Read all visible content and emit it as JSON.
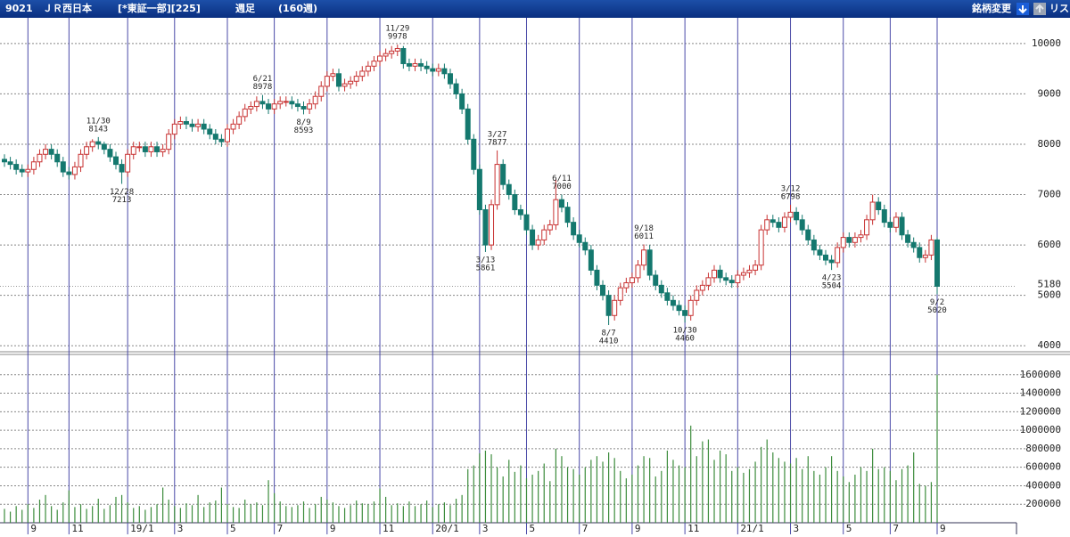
{
  "header": {
    "code": "9021",
    "name": "ＪＲ西日本",
    "market": "[*東証一部][225]",
    "period": "週足",
    "span": "(160週)",
    "change_button": "銘柄変更",
    "list_button": "リス"
  },
  "chart_data": {
    "type": "candlestick",
    "categories": [
      null,
      null,
      null,
      null,
      "9",
      null,
      null,
      null,
      null,
      null,
      null,
      "11",
      null,
      null,
      null,
      null,
      null,
      null,
      null,
      null,
      null,
      "19/1",
      null,
      null,
      null,
      null,
      null,
      null,
      null,
      "3",
      null,
      null,
      null,
      null,
      null,
      null,
      null,
      null,
      "5",
      null,
      null,
      null,
      null,
      null,
      null,
      null,
      "7",
      null,
      null,
      null,
      null,
      null,
      null,
      null,
      null,
      "9",
      null,
      null,
      null,
      null,
      null,
      null,
      null,
      null,
      "11",
      null,
      null,
      null,
      null,
      null,
      null,
      null,
      null,
      "20/1",
      null,
      null,
      null,
      null,
      null,
      null,
      null,
      "3",
      null,
      null,
      null,
      null,
      null,
      null,
      null,
      "5",
      null,
      null,
      null,
      null,
      null,
      null,
      null,
      null,
      "7",
      null,
      null,
      null,
      null,
      null,
      null,
      null,
      null,
      "9",
      null,
      null,
      null,
      null,
      null,
      null,
      null,
      null,
      "11",
      null,
      null,
      null,
      null,
      null,
      null,
      null,
      null,
      "21/1",
      null,
      null,
      null,
      null,
      null,
      null,
      null,
      null,
      "3",
      null,
      null,
      null,
      null,
      null,
      null,
      null,
      null,
      "5",
      null,
      null,
      null,
      null,
      null,
      null,
      null,
      "7",
      null,
      null,
      null,
      null,
      null,
      null,
      null,
      "9"
    ],
    "open": [
      7700,
      7650,
      7600,
      7500,
      7450,
      7500,
      7650,
      7800,
      7900,
      7800,
      7650,
      7450,
      7400,
      7550,
      7800,
      7950,
      8050,
      8000,
      7900,
      7750,
      7600,
      7450,
      7800,
      7950,
      7950,
      7850,
      7950,
      7850,
      7900,
      8200,
      8400,
      8450,
      8400,
      8350,
      8400,
      8300,
      8200,
      8100,
      8050,
      8300,
      8400,
      8550,
      8700,
      8750,
      8850,
      8800,
      8700,
      8800,
      8850,
      8850,
      8800,
      8750,
      8700,
      8800,
      8950,
      9150,
      9350,
      9400,
      9150,
      9200,
      9250,
      9350,
      9450,
      9550,
      9650,
      9750,
      9800,
      9850,
      9900,
      9600,
      9550,
      9600,
      9550,
      9500,
      9450,
      9500,
      9400,
      9200,
      9000,
      8700,
      8100,
      7500,
      6700,
      6000,
      6800,
      7600,
      7200,
      7000,
      6700,
      6600,
      6300,
      6000,
      6100,
      6300,
      6400,
      6900,
      6750,
      6450,
      6200,
      6050,
      5900,
      5500,
      5200,
      5000,
      4600,
      4900,
      5150,
      5250,
      5350,
      5600,
      5900,
      5400,
      5200,
      5050,
      4900,
      4800,
      4700,
      4600,
      4900,
      5100,
      5200,
      5350,
      5500,
      5350,
      5300,
      5250,
      5400,
      5450,
      5500,
      5600,
      6300,
      6500,
      6450,
      6350,
      6550,
      6650,
      6500,
      6300,
      6100,
      5900,
      5800,
      5700,
      5650,
      5950,
      6150,
      6050,
      6150,
      6200,
      6500,
      6850,
      6700,
      6450,
      6350,
      6550,
      6200,
      6050,
      5950,
      5750,
      5800,
      6100
    ],
    "high": [
      7800,
      7750,
      7700,
      7600,
      7600,
      7750,
      7900,
      8000,
      8000,
      7900,
      7750,
      7550,
      7650,
      7900,
      8050,
      8100,
      8143,
      8050,
      8000,
      7850,
      7700,
      7900,
      8050,
      8050,
      8050,
      8050,
      8050,
      8000,
      8300,
      8500,
      8550,
      8550,
      8500,
      8500,
      8500,
      8400,
      8300,
      8200,
      8400,
      8500,
      8650,
      8800,
      8850,
      8950,
      8978,
      8900,
      8900,
      8950,
      8950,
      8950,
      8900,
      8850,
      8900,
      9050,
      9250,
      9450,
      9500,
      9500,
      9300,
      9350,
      9450,
      9550,
      9650,
      9750,
      9850,
      9900,
      9950,
      9978,
      9950,
      9700,
      9700,
      9700,
      9650,
      9600,
      9600,
      9600,
      9500,
      9300,
      9100,
      8800,
      8200,
      7600,
      6800,
      6900,
      7877,
      7700,
      7300,
      7100,
      6800,
      6700,
      6400,
      6200,
      6400,
      6500,
      7300,
      7000,
      6850,
      6550,
      6300,
      6150,
      6000,
      5600,
      5300,
      5100,
      5000,
      5250,
      5350,
      5450,
      5700,
      6011,
      6000,
      5500,
      5300,
      5150,
      5000,
      4900,
      4800,
      5000,
      5200,
      5300,
      5450,
      5600,
      5600,
      5450,
      5400,
      5500,
      5550,
      5600,
      5700,
      6400,
      6600,
      6600,
      6550,
      6650,
      6798,
      6750,
      6600,
      6400,
      6200,
      6000,
      5900,
      5800,
      6050,
      6250,
      6250,
      6250,
      6300,
      6600,
      7000,
      6950,
      6800,
      6550,
      6650,
      6650,
      6300,
      6150,
      6050,
      5900,
      6200,
      6150
    ],
    "low": [
      7550,
      7500,
      7400,
      7350,
      7350,
      7400,
      7550,
      7700,
      7700,
      7550,
      7350,
      7300,
      7300,
      7450,
      7700,
      7850,
      7900,
      7800,
      7650,
      7500,
      7213,
      7350,
      7700,
      7850,
      7750,
      7750,
      7750,
      7750,
      7800,
      8100,
      8300,
      8300,
      8250,
      8250,
      8200,
      8100,
      8000,
      7950,
      7950,
      8200,
      8300,
      8450,
      8600,
      8650,
      8700,
      8600,
      8600,
      8700,
      8750,
      8700,
      8650,
      8593,
      8600,
      8700,
      8850,
      9050,
      9250,
      9050,
      9050,
      9100,
      9150,
      9250,
      9350,
      9450,
      9550,
      9650,
      9700,
      9750,
      9500,
      9450,
      9450,
      9450,
      9400,
      9350,
      9350,
      9300,
      9100,
      8900,
      8600,
      8000,
      7400,
      6600,
      5861,
      5900,
      6700,
      7100,
      6900,
      6600,
      6500,
      6200,
      5900,
      5900,
      6000,
      6200,
      6300,
      6650,
      6350,
      6100,
      5950,
      5800,
      5400,
      5100,
      4900,
      4410,
      4500,
      4800,
      5050,
      5150,
      5250,
      5500,
      5300,
      5100,
      4950,
      4800,
      4700,
      4600,
      4460,
      4500,
      4800,
      5000,
      5100,
      5250,
      5250,
      5200,
      5150,
      5150,
      5300,
      5350,
      5400,
      5500,
      6200,
      6350,
      6250,
      6250,
      6450,
      6400,
      6200,
      6000,
      5800,
      5700,
      5600,
      5504,
      5550,
      5850,
      5950,
      5950,
      6050,
      6100,
      6400,
      6600,
      6350,
      6250,
      6250,
      6100,
      5950,
      5850,
      5650,
      5650,
      5700,
      5020
    ],
    "close": [
      7650,
      7600,
      7500,
      7450,
      7500,
      7650,
      7800,
      7900,
      7800,
      7650,
      7450,
      7400,
      7550,
      7800,
      7950,
      8050,
      8000,
      7900,
      7750,
      7600,
      7450,
      7800,
      7950,
      7950,
      7850,
      7950,
      7850,
      7900,
      8200,
      8400,
      8450,
      8400,
      8350,
      8400,
      8300,
      8200,
      8100,
      8050,
      8300,
      8400,
      8550,
      8700,
      8750,
      8850,
      8800,
      8700,
      8800,
      8850,
      8850,
      8800,
      8750,
      8700,
      8800,
      8950,
      9150,
      9350,
      9400,
      9150,
      9200,
      9250,
      9350,
      9450,
      9550,
      9650,
      9750,
      9800,
      9850,
      9900,
      9600,
      9550,
      9600,
      9550,
      9500,
      9450,
      9500,
      9400,
      9200,
      9000,
      8700,
      8100,
      7500,
      6700,
      6000,
      6800,
      7600,
      7200,
      7000,
      6700,
      6600,
      6300,
      6000,
      6100,
      6300,
      6400,
      6900,
      6750,
      6450,
      6200,
      6050,
      5900,
      5500,
      5200,
      5000,
      4600,
      4900,
      5150,
      5250,
      5350,
      5600,
      5900,
      5400,
      5200,
      5050,
      4900,
      4800,
      4700,
      4600,
      4900,
      5100,
      5200,
      5350,
      5500,
      5350,
      5300,
      5250,
      5400,
      5450,
      5500,
      5600,
      6300,
      6500,
      6450,
      6350,
      6550,
      6650,
      6500,
      6300,
      6100,
      5900,
      5800,
      5700,
      5650,
      5950,
      6150,
      6050,
      6150,
      6200,
      6500,
      6850,
      6700,
      6450,
      6350,
      6550,
      6200,
      6050,
      5950,
      5750,
      5800,
      6100,
      5180
    ],
    "volume": [
      150000,
      120000,
      180000,
      140000,
      200000,
      160000,
      250000,
      300000,
      180000,
      140000,
      220000,
      350000,
      170000,
      200000,
      150000,
      180000,
      260000,
      150000,
      190000,
      280000,
      300000,
      220000,
      160000,
      180000,
      140000,
      170000,
      200000,
      380000,
      250000,
      180000,
      160000,
      210000,
      190000,
      300000,
      170000,
      220000,
      240000,
      380000,
      200000,
      170000,
      160000,
      250000,
      200000,
      220000,
      190000,
      460000,
      320000,
      230000,
      180000,
      170000,
      190000,
      230000,
      160000,
      200000,
      280000,
      250000,
      220000,
      180000,
      160000,
      190000,
      240000,
      210000,
      200000,
      230000,
      370000,
      280000,
      190000,
      210000,
      180000,
      230000,
      180000,
      200000,
      240000,
      170000,
      200000,
      220000,
      190000,
      260000,
      300000,
      580000,
      620000,
      750000,
      780000,
      740000,
      600000,
      500000,
      680000,
      550000,
      620000,
      480000,
      520000,
      560000,
      640000,
      450000,
      800000,
      720000,
      600000,
      580000,
      520000,
      600000,
      680000,
      720000,
      660000,
      760000,
      700000,
      560000,
      480000,
      520000,
      620000,
      720000,
      700000,
      500000,
      560000,
      780000,
      680000,
      620000,
      600000,
      1050000,
      720000,
      880000,
      900000,
      680000,
      780000,
      740000,
      560000,
      600000,
      540000,
      580000,
      660000,
      820000,
      900000,
      760000,
      700000,
      660000,
      640000,
      700000,
      580000,
      720000,
      560000,
      520000,
      600000,
      720000,
      560000,
      500000,
      440000,
      520000,
      600000,
      560000,
      800000,
      580000,
      600000,
      560000,
      460000,
      580000,
      620000,
      760000,
      420000,
      400000,
      440000,
      1600000
    ],
    "up_color": "#c83232",
    "down_color": "#14786e",
    "volume_color": "#3c8c3c",
    "ylim": [
      3880,
      10510
    ],
    "yticks": [
      4000,
      5000,
      6000,
      7000,
      8000,
      9000,
      10000
    ],
    "y2lim": [
      0,
      1800000
    ],
    "y2ticks": [
      200000,
      400000,
      600000,
      800000,
      1000000,
      1200000,
      1400000,
      1600000
    ],
    "last_price": 5180,
    "annotations": [
      {
        "label": "11/30",
        "value": 8143
      },
      {
        "label": "12/28",
        "value": 7213
      },
      {
        "label": "6/21",
        "value": 8978
      },
      {
        "label": "8/9",
        "value": 8593
      },
      {
        "label": "11/29",
        "value": 9978
      },
      {
        "label": "3/13",
        "value": 5861
      },
      {
        "label": "3/27",
        "value": 7877
      },
      {
        "label": "8/7",
        "value": 4410
      },
      {
        "label": "9/18",
        "value": 6011
      },
      {
        "label": "10/30",
        "value": 4460
      },
      {
        "label": "3/12",
        "value": 6798
      },
      {
        "label": "4/23",
        "value": 5504
      },
      {
        "label": "6/11",
        "value": 7000
      },
      {
        "label": "9/2",
        "value": 5020
      }
    ],
    "grid": true
  }
}
